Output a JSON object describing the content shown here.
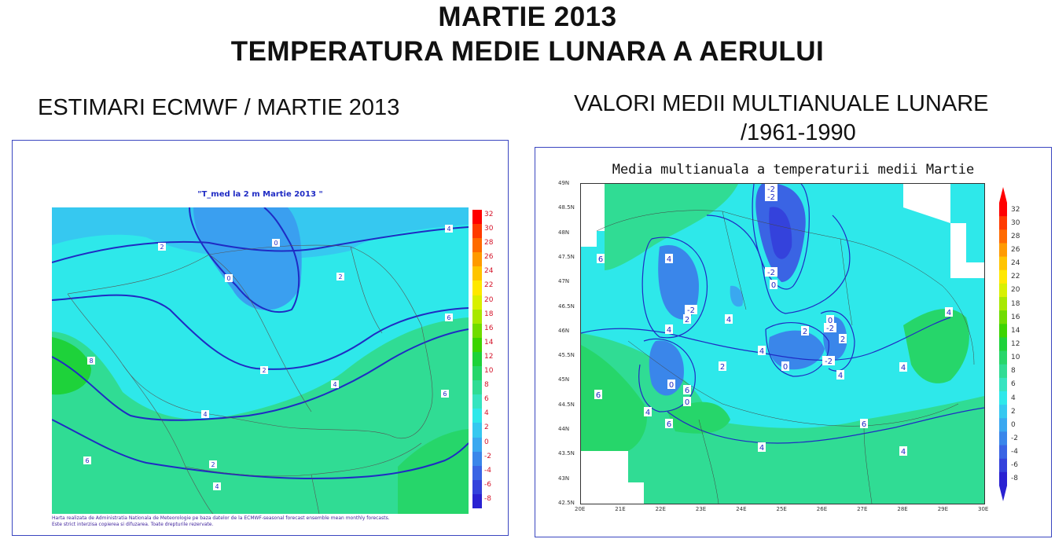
{
  "header": {
    "title_line1": "MARTIE 2013",
    "title_line2": "TEMPERATURA MEDIE LUNARA A AERULUI"
  },
  "left": {
    "subtitle": "ESTIMARI ECMWF / MARTIE 2013",
    "map_title": "\"T_med la 2 m Martie 2013 \"",
    "footnote_line1": "Harta realizata de Administratia Nationala de Meteorologie pe baza datelor de la ECMWF-seasonal forecast ensemble mean monthly forecasts.",
    "footnote_line2": "Este strict interzisa copierea si difuzarea. Toate drepturile rezervate.",
    "colorbar_ticks": [
      "32",
      "30",
      "28",
      "26",
      "24",
      "22",
      "20",
      "18",
      "16",
      "14",
      "12",
      "10",
      "8",
      "6",
      "4",
      "2",
      "0",
      "-2",
      "-4",
      "-6",
      "-8"
    ],
    "contour_labels": [
      "2",
      "0",
      "0",
      "2",
      "4",
      "6",
      "2",
      "4",
      "4",
      "6",
      "8",
      "6",
      "4",
      "2"
    ]
  },
  "right": {
    "subtitle_line1": "VALORI MEDII MULTIANUALE LUNARE",
    "subtitle_line2": "/1961-1990",
    "map_title": "Media multianuala a temperaturii medii Martie",
    "y_ticks": [
      "49N",
      "48.5N",
      "48N",
      "47.5N",
      "47N",
      "46.5N",
      "46N",
      "45.5N",
      "45N",
      "44.5N",
      "44N",
      "43.5N",
      "43N",
      "42.5N"
    ],
    "x_ticks": [
      "20E",
      "21E",
      "22E",
      "23E",
      "24E",
      "25E",
      "26E",
      "27E",
      "28E",
      "29E",
      "30E"
    ],
    "colorbar_ticks": [
      "32",
      "30",
      "28",
      "26",
      "24",
      "22",
      "20",
      "18",
      "16",
      "14",
      "12",
      "10",
      "8",
      "6",
      "4",
      "2",
      "0",
      "-2",
      "-4",
      "-6",
      "-8"
    ],
    "contour_labels": [
      "-2",
      "-2",
      "-2",
      "0",
      "4",
      "4",
      "-2",
      "2",
      "4",
      "4",
      "4",
      "2",
      "2",
      "0",
      "-2",
      "0",
      "2",
      "4",
      "6",
      "6",
      "4",
      "6",
      "6",
      "4",
      "4",
      "6",
      "4",
      "0",
      "0",
      "-2"
    ]
  },
  "colors": {
    "panel_border": "#3a46c0",
    "contour": "#1f2bc4",
    "scale": [
      "#ff0000",
      "#ff3a00",
      "#ff6a00",
      "#ff9a00",
      "#ffc400",
      "#ffe800",
      "#d8f000",
      "#a8e800",
      "#70dc00",
      "#3cd400",
      "#1ed23a",
      "#26d66a",
      "#30dc94",
      "#36e4c0",
      "#2ee8ea",
      "#36c8f0",
      "#3aa8f0",
      "#3a86ea",
      "#3a64e4",
      "#3442dc",
      "#2a22d2"
    ]
  }
}
